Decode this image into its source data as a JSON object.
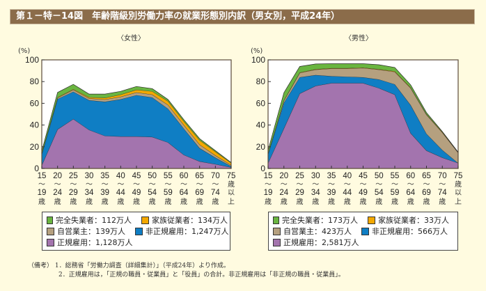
{
  "title": "第１－特－14図　年齢階級別労働力率の就業形態別内訳（男女別，平成24年）",
  "colors": {
    "unemployed": "#6ab540",
    "family_worker": "#f3a800",
    "self_employed": "#b5a07f",
    "non_regular": "#0f7ec4",
    "regular": "#a374ae",
    "title_bg": "#8b6c4a",
    "page_bg": "#fffbe0"
  },
  "chart_data": [
    {
      "type": "area",
      "stacked": true,
      "panel_title": "〈女性〉",
      "ylabel": "(%)",
      "ylim": [
        0,
        100
      ],
      "yticks": [
        "0",
        "20",
        "40",
        "60",
        "80",
        "100"
      ],
      "categories": [
        {
          "top": "15",
          "sep": "〜",
          "bottom": "19",
          "suffix": "歳"
        },
        {
          "top": "20",
          "sep": "〜",
          "bottom": "24",
          "suffix": "歳"
        },
        {
          "top": "25",
          "sep": "〜",
          "bottom": "29",
          "suffix": "歳"
        },
        {
          "top": "30",
          "sep": "〜",
          "bottom": "34",
          "suffix": "歳"
        },
        {
          "top": "35",
          "sep": "〜",
          "bottom": "39",
          "suffix": "歳"
        },
        {
          "top": "40",
          "sep": "〜",
          "bottom": "44",
          "suffix": "歳"
        },
        {
          "top": "45",
          "sep": "〜",
          "bottom": "49",
          "suffix": "歳"
        },
        {
          "top": "50",
          "sep": "〜",
          "bottom": "54",
          "suffix": "歳"
        },
        {
          "top": "55",
          "sep": "〜",
          "bottom": "59",
          "suffix": "歳"
        },
        {
          "top": "60",
          "sep": "〜",
          "bottom": "64",
          "suffix": "歳"
        },
        {
          "top": "65",
          "sep": "〜",
          "bottom": "69",
          "suffix": "歳"
        },
        {
          "top": "70",
          "sep": "〜",
          "bottom": "74",
          "suffix": "歳"
        },
        {
          "top": "75",
          "sep": "歳",
          "bottom": "以",
          "suffix": "上"
        }
      ],
      "series": [
        {
          "key": "regular",
          "name": "正規雇用",
          "values": [
            3,
            36,
            45.5,
            35.5,
            30,
            29.5,
            29.5,
            29,
            24,
            12.5,
            6.5,
            4,
            1
          ]
        },
        {
          "key": "non_regular",
          "name": "非正規雇用",
          "values": [
            10,
            28,
            25.2,
            27.3,
            31.5,
            34.2,
            38,
            36.4,
            31,
            24.2,
            12.2,
            6,
            1
          ]
        },
        {
          "key": "self_employed",
          "name": "自営業主",
          "values": [
            0.3,
            1,
            1.8,
            1.7,
            2,
            2.3,
            2.5,
            2.6,
            3.5,
            3.3,
            3.3,
            2,
            1
          ]
        },
        {
          "key": "family_worker",
          "name": "家族従業者",
          "values": [
            0.2,
            0.5,
            0.5,
            1,
            1.5,
            2,
            2.5,
            3,
            3.5,
            3.5,
            4,
            3.5,
            2
          ]
        },
        {
          "key": "unemployed",
          "name": "完全失業者",
          "values": [
            2.5,
            4.5,
            4.5,
            3,
            3.5,
            3,
            3,
            2.5,
            1.5,
            1.5,
            1.5,
            1,
            0.5
          ]
        }
      ],
      "legend": [
        {
          "key": "unemployed",
          "label": "完全失業者：112万人"
        },
        {
          "key": "family_worker",
          "label": "家族従業者：134万人"
        },
        {
          "key": "self_employed",
          "label": "自営業主：139万人"
        },
        {
          "key": "non_regular",
          "label": "非正規雇用：1,247万人"
        },
        {
          "key": "regular",
          "label": "正規雇用：1,128万人"
        }
      ]
    },
    {
      "type": "area",
      "stacked": true,
      "panel_title": "〈男性〉",
      "ylabel": "(%)",
      "ylim": [
        0,
        100
      ],
      "yticks": [
        "0",
        "20",
        "40",
        "60",
        "80",
        "100"
      ],
      "categories": [
        {
          "top": "15",
          "sep": "〜",
          "bottom": "19",
          "suffix": "歳"
        },
        {
          "top": "20",
          "sep": "〜",
          "bottom": "24",
          "suffix": "歳"
        },
        {
          "top": "25",
          "sep": "〜",
          "bottom": "29",
          "suffix": "歳"
        },
        {
          "top": "30",
          "sep": "〜",
          "bottom": "34",
          "suffix": "歳"
        },
        {
          "top": "35",
          "sep": "〜",
          "bottom": "39",
          "suffix": "歳"
        },
        {
          "top": "40",
          "sep": "〜",
          "bottom": "44",
          "suffix": "歳"
        },
        {
          "top": "45",
          "sep": "〜",
          "bottom": "49",
          "suffix": "歳"
        },
        {
          "top": "50",
          "sep": "〜",
          "bottom": "54",
          "suffix": "歳"
        },
        {
          "top": "55",
          "sep": "〜",
          "bottom": "59",
          "suffix": "歳"
        },
        {
          "top": "60",
          "sep": "〜",
          "bottom": "64",
          "suffix": "歳"
        },
        {
          "top": "65",
          "sep": "〜",
          "bottom": "69",
          "suffix": "歳"
        },
        {
          "top": "70",
          "sep": "〜",
          "bottom": "74",
          "suffix": "歳"
        },
        {
          "top": "75",
          "sep": "歳",
          "bottom": "以",
          "suffix": "上"
        }
      ],
      "series": [
        {
          "key": "regular",
          "name": "正規雇用",
          "values": [
            5,
            37,
            69,
            76,
            78.6,
            78.6,
            78.6,
            74,
            68,
            32.5,
            16.5,
            10,
            5
          ]
        },
        {
          "key": "non_regular",
          "name": "非正規雇用",
          "values": [
            8,
            23.5,
            15,
            10,
            6.4,
            5.9,
            5.4,
            8,
            9.5,
            25.9,
            15.5,
            7,
            0
          ]
        },
        {
          "key": "self_employed",
          "name": "自営業主",
          "values": [
            0.5,
            2,
            4,
            5,
            7,
            7.5,
            8.5,
            9,
            11.5,
            15.6,
            17.5,
            16,
            9.5
          ]
        },
        {
          "key": "family_worker",
          "name": "家族従業者",
          "values": [
            0.2,
            0.3,
            0.4,
            0.4,
            0.4,
            0.4,
            0.4,
            0.4,
            0.5,
            0.5,
            0.5,
            0.5,
            0.3
          ]
        },
        {
          "key": "unemployed",
          "name": "完全失業者",
          "values": [
            3,
            7,
            5.5,
            4.8,
            4.1,
            4.1,
            3.6,
            4.1,
            3.5,
            2.5,
            1.5,
            0.5,
            0.2
          ]
        }
      ],
      "legend": [
        {
          "key": "unemployed",
          "label": "完全失業者：173万人"
        },
        {
          "key": "family_worker",
          "label": "家族従業者：33万人"
        },
        {
          "key": "self_employed",
          "label": "自営業主：423万人"
        },
        {
          "key": "non_regular",
          "label": "非正規雇用：566万人"
        },
        {
          "key": "regular",
          "label": "正規雇用：2,581万人"
        }
      ]
    }
  ],
  "notes": {
    "label": "（備考）",
    "lines": [
      "1．総務省「労働力調査（詳細集計）」（平成24年）より作成。",
      "2．正規雇用は，「正規の職員・従業員」と「役員」の合計。非正規雇用は「非正規の職員・従業員」。"
    ]
  }
}
